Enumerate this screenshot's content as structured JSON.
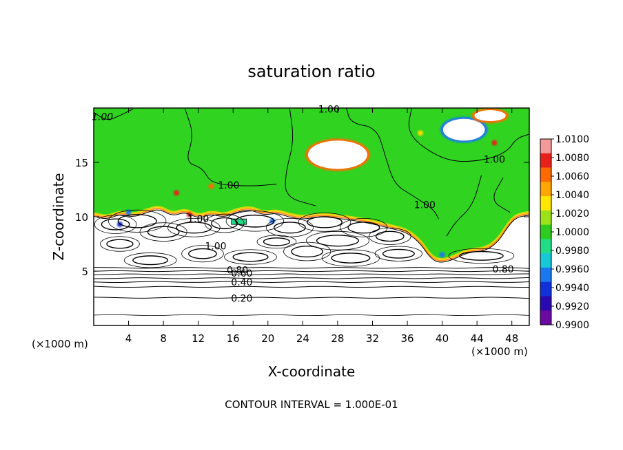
{
  "chart_data": {
    "type": "heatmap",
    "title": "saturation ratio",
    "xlabel": "X-coordinate",
    "ylabel": "Z-coordinate",
    "x_unit": "(×1000 m)",
    "x_unit_right": "(×1000 m)",
    "footer": "CONTOUR INTERVAL = 1.000E-01",
    "xlim": [
      0,
      50
    ],
    "ylim": [
      0,
      20
    ],
    "x_ticks": [
      4,
      8,
      12,
      16,
      20,
      24,
      28,
      32,
      36,
      40,
      44,
      48
    ],
    "y_ticks": [
      5,
      10,
      15
    ],
    "colorbar": {
      "range": [
        0.99,
        1.01
      ],
      "tick_labels": [
        "1.0100",
        "1.0080",
        "1.0060",
        "1.0040",
        "1.0020",
        "1.0000",
        "0.9980",
        "0.9960",
        "0.9940",
        "0.9920",
        "0.9900"
      ],
      "colors": [
        "#f49a9a",
        "#e8201c",
        "#ff6a00",
        "#ffa500",
        "#ffe600",
        "#9be21a",
        "#2ecc1f",
        "#22dd88",
        "#16c8d8",
        "#1a78f0",
        "#1230d8",
        "#2a0ab0",
        "#6a0aa0"
      ]
    },
    "contour_labels": [
      {
        "text": "1.00",
        "x": 1.0,
        "y": 19.2
      },
      {
        "text": "1.00",
        "x": 27.0,
        "y": 19.9
      },
      {
        "text": "1.00",
        "x": 15.5,
        "y": 12.9
      },
      {
        "text": "1.00",
        "x": 12.0,
        "y": 9.8
      },
      {
        "text": "1.00",
        "x": 14.0,
        "y": 7.3
      },
      {
        "text": "1.00",
        "x": 38.0,
        "y": 11.1
      },
      {
        "text": "1.00",
        "x": 46.0,
        "y": 15.3
      },
      {
        "text": "0.80",
        "x": 16.5,
        "y": 5.1
      },
      {
        "text": "0.60",
        "x": 17.0,
        "y": 4.8
      },
      {
        "text": "0.40",
        "x": 17.0,
        "y": 4.0
      },
      {
        "text": "0.20",
        "x": 17.0,
        "y": 2.5
      },
      {
        "text": "0.80",
        "x": 47.0,
        "y": 5.2
      }
    ],
    "stable_contours_z": [
      0.95,
      2.55,
      3.55,
      4.0,
      4.35,
      4.7,
      5.0,
      5.3
    ],
    "saturated_boundary": [
      [
        0,
        10.3
      ],
      [
        1.5,
        10.0
      ],
      [
        3,
        10.5
      ],
      [
        4.5,
        10.2
      ],
      [
        6,
        10.6
      ],
      [
        7.5,
        11.0
      ],
      [
        9,
        10.3
      ],
      [
        10.5,
        10.7
      ],
      [
        12,
        10.1
      ],
      [
        13.5,
        10.5
      ],
      [
        15,
        10.2
      ],
      [
        16.5,
        10.7
      ],
      [
        18,
        10.9
      ],
      [
        19.5,
        10.4
      ],
      [
        21,
        10.6
      ],
      [
        22.5,
        10.2
      ],
      [
        24,
        10.0
      ],
      [
        26,
        10.3
      ],
      [
        28,
        10.1
      ],
      [
        30,
        9.9
      ],
      [
        32,
        9.6
      ],
      [
        34,
        9.2
      ],
      [
        36,
        8.8
      ],
      [
        37.5,
        7.8
      ],
      [
        38.5,
        6.6
      ],
      [
        39.5,
        6.0
      ],
      [
        41,
        6.2
      ],
      [
        43,
        7.0
      ],
      [
        45,
        7.1
      ],
      [
        46.5,
        8.0
      ],
      [
        47.5,
        9.3
      ],
      [
        48.5,
        10.2
      ],
      [
        50,
        10.4
      ]
    ],
    "dry_patches": [
      {
        "x": 28.0,
        "y": 15.7,
        "rx": 3.4,
        "ry": 1.3
      },
      {
        "x": 42.5,
        "y": 18.0,
        "rx": 2.4,
        "ry": 1.0
      },
      {
        "x": 45.5,
        "y": 19.3,
        "rx": 1.8,
        "ry": 0.5
      }
    ]
  }
}
